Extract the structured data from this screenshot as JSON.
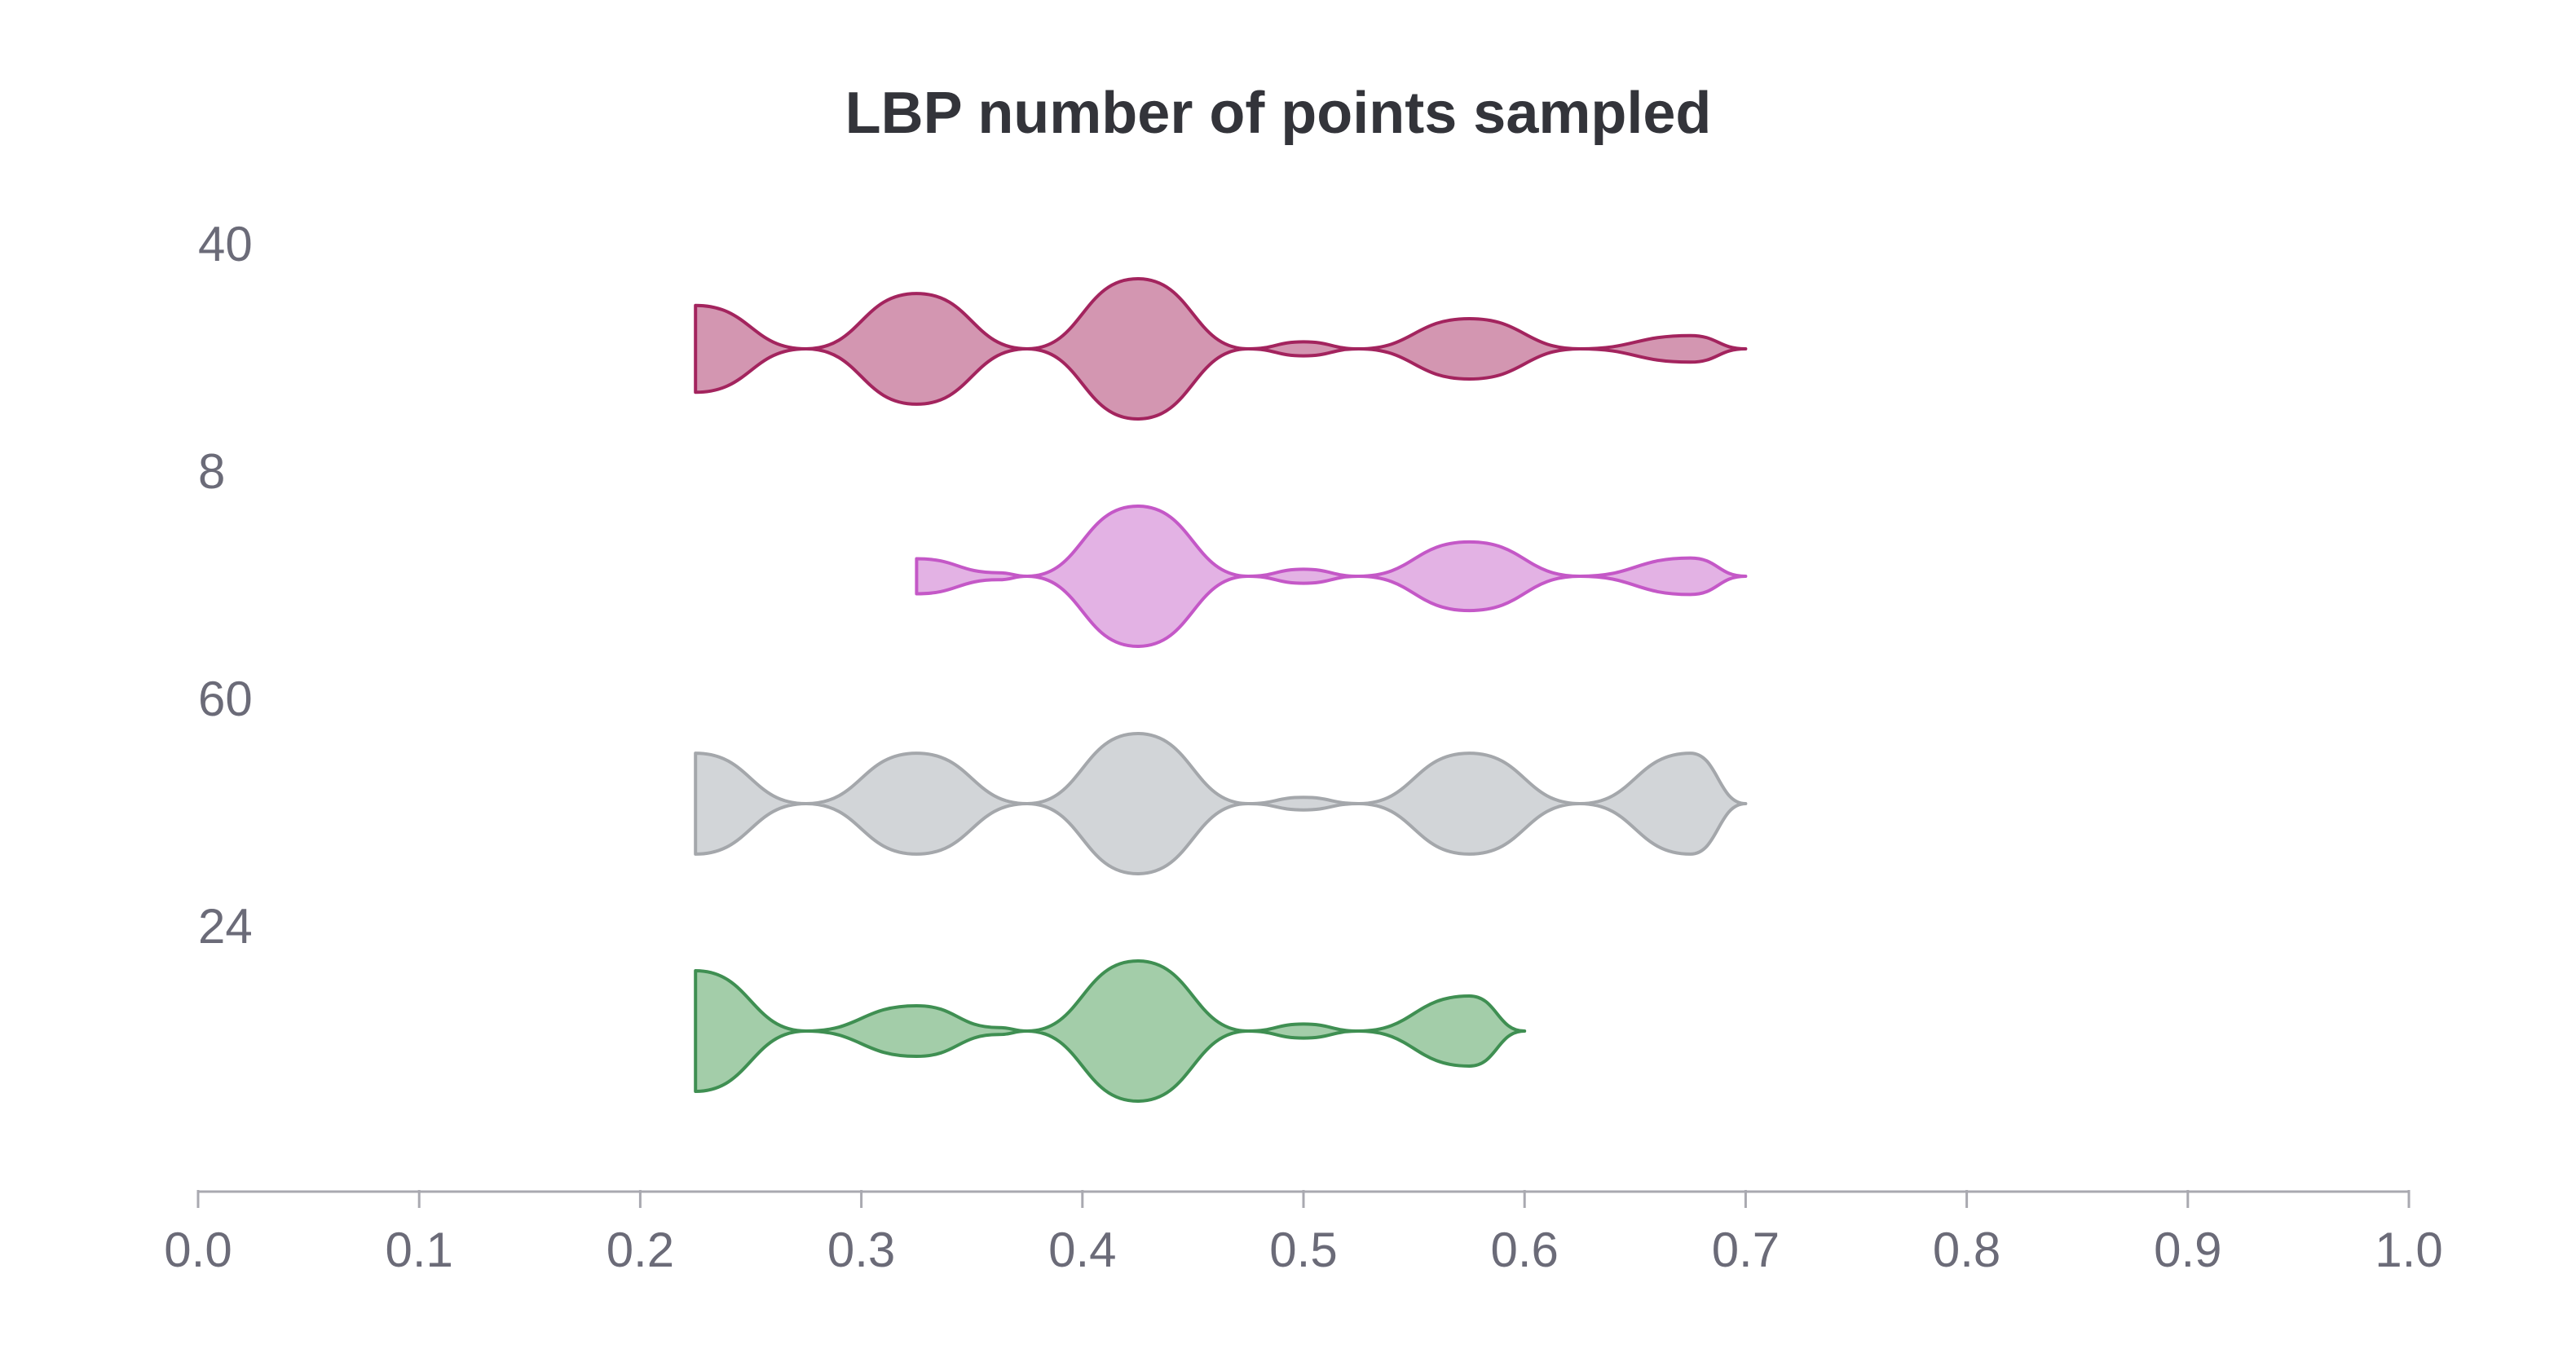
{
  "chart_data": {
    "type": "violin",
    "title": "LBP number of points sampled",
    "xlabel": "",
    "ylabel": "",
    "xlim": [
      0.0,
      1.0
    ],
    "x_ticks": [
      "0.0",
      "0.1",
      "0.2",
      "0.3",
      "0.4",
      "0.5",
      "0.6",
      "0.7",
      "0.8",
      "0.9",
      "1.0"
    ],
    "grid": false,
    "categories": [
      "40",
      "8",
      "60",
      "24"
    ],
    "series": [
      {
        "name": "40",
        "color": "#a3245e",
        "fill": "#d396b1",
        "density": [
          [
            0.225,
            0.62
          ],
          [
            0.275,
            0.0
          ],
          [
            0.325,
            0.79
          ],
          [
            0.375,
            0.0
          ],
          [
            0.425,
            1.0
          ],
          [
            0.475,
            0.0
          ],
          [
            0.5,
            0.1
          ],
          [
            0.525,
            0.0
          ],
          [
            0.575,
            0.43
          ],
          [
            0.625,
            0.0
          ],
          [
            0.675,
            0.19
          ],
          [
            0.7,
            0.0
          ]
        ]
      },
      {
        "name": "8",
        "color": "#c458c7",
        "fill": "#e3b2e4",
        "density": [
          [
            0.325,
            0.25
          ],
          [
            0.362,
            0.05
          ],
          [
            0.375,
            0.0
          ],
          [
            0.425,
            1.0
          ],
          [
            0.475,
            0.0
          ],
          [
            0.5,
            0.1
          ],
          [
            0.525,
            0.0
          ],
          [
            0.575,
            0.49
          ],
          [
            0.625,
            0.0
          ],
          [
            0.675,
            0.26
          ],
          [
            0.7,
            0.0
          ]
        ]
      },
      {
        "name": "60",
        "color": "#a4a7ab",
        "fill": "#d2d5d8",
        "density": [
          [
            0.225,
            0.72
          ],
          [
            0.275,
            0.0
          ],
          [
            0.325,
            0.72
          ],
          [
            0.375,
            0.0
          ],
          [
            0.425,
            1.0
          ],
          [
            0.475,
            0.0
          ],
          [
            0.5,
            0.09
          ],
          [
            0.525,
            0.0
          ],
          [
            0.575,
            0.72
          ],
          [
            0.625,
            0.0
          ],
          [
            0.675,
            0.72
          ],
          [
            0.7,
            0.0
          ]
        ]
      },
      {
        "name": "24",
        "color": "#3f8f52",
        "fill": "#a3cda9",
        "density": [
          [
            0.225,
            0.86
          ],
          [
            0.275,
            0.0
          ],
          [
            0.325,
            0.36
          ],
          [
            0.362,
            0.05
          ],
          [
            0.375,
            0.0
          ],
          [
            0.425,
            1.0
          ],
          [
            0.475,
            0.0
          ],
          [
            0.5,
            0.1
          ],
          [
            0.525,
            0.0
          ],
          [
            0.575,
            0.5
          ],
          [
            0.6,
            0.0
          ]
        ]
      }
    ]
  }
}
